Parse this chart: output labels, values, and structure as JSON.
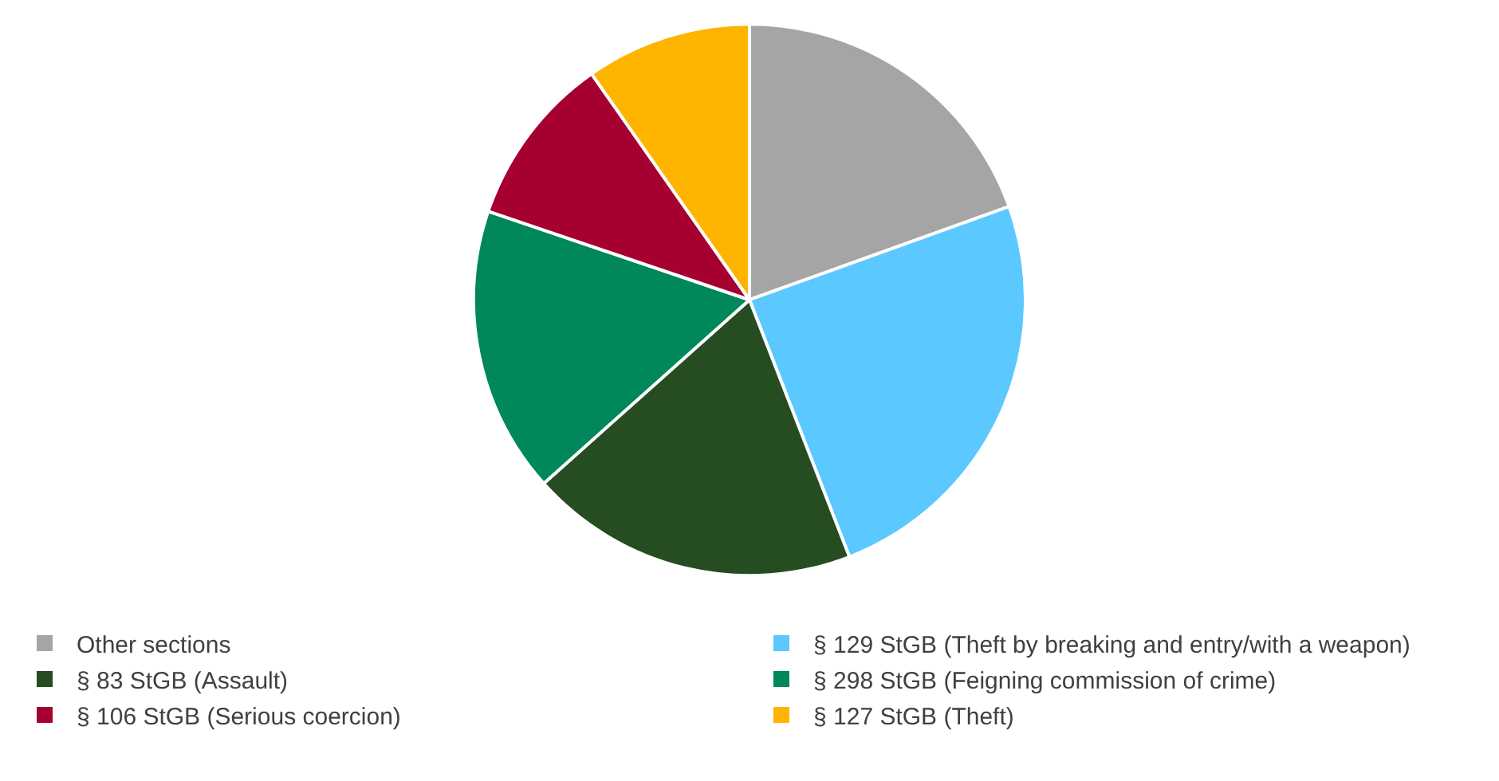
{
  "chart_data": {
    "type": "pie",
    "categories": [
      "Other sections",
      "§ 129 StGB (Theft by breaking and entry/with a weapon)",
      "§ 83 StGB (Assault)",
      "§ 298 StGB (Feigning commission of crime)",
      "§ 106 StGB (Serious coercion)",
      "§ 127 StGB (Theft)"
    ],
    "values": [
      19.5,
      24.6,
      19.3,
      16.8,
      10.1,
      9.7
    ],
    "colors": [
      "#a5a5a5",
      "#5bc8ff",
      "#254d21",
      "#00875a",
      "#a50030",
      "#ffb400"
    ],
    "legend": "bottom"
  }
}
